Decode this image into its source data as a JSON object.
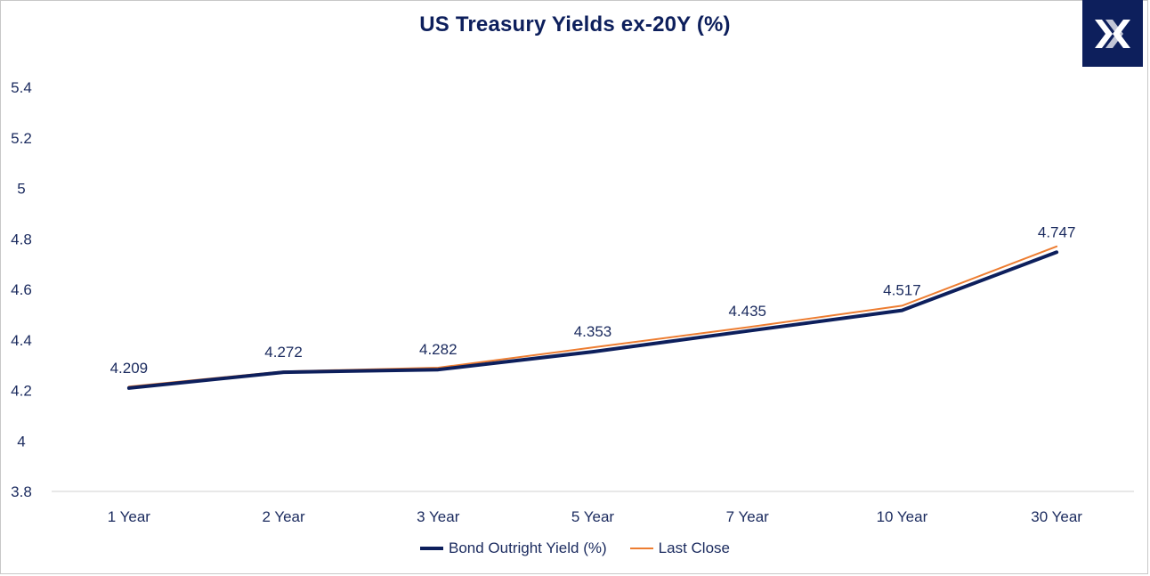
{
  "chart_data": {
    "type": "line",
    "title": "US Treasury Yields ex-20Y (%)",
    "categories": [
      "1 Year",
      "2 Year",
      "3 Year",
      "5 Year",
      "7 Year",
      "10 Year",
      "30 Year"
    ],
    "series": [
      {
        "name": "Bond Outright Yield (%)",
        "values": [
          4.209,
          4.272,
          4.282,
          4.353,
          4.435,
          4.517,
          4.747
        ],
        "color": "#0d1f5c",
        "data_labels": [
          "4.209",
          "4.272",
          "4.282",
          "4.353",
          "4.435",
          "4.517",
          "4.747"
        ]
      },
      {
        "name": "Last Close",
        "values": [
          4.215,
          4.275,
          4.29,
          4.37,
          4.45,
          4.535,
          4.77
        ],
        "color": "#ed7d31"
      }
    ],
    "yticks": [
      "3.8",
      "4",
      "4.2",
      "4.4",
      "4.6",
      "4.8",
      "5",
      "5.2",
      "5.4"
    ],
    "ylim": [
      3.8,
      5.4
    ],
    "grid": false,
    "legend_position": "bottom"
  },
  "logo": {
    "name": "x-logo-icon",
    "color": "#0d1f5c"
  }
}
